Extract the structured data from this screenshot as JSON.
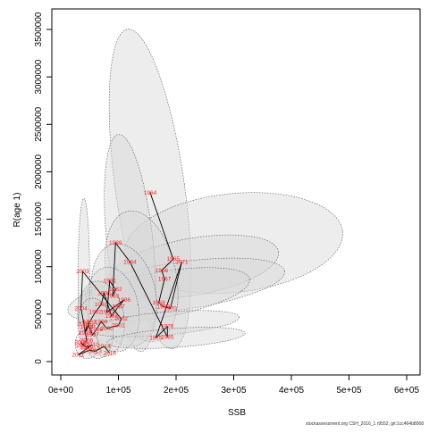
{
  "chart_data": {
    "type": "scatter",
    "title": "",
    "xlabel": "SSB",
    "ylabel": "R(age 1)",
    "xlim": [
      0,
      600000
    ],
    "ylim": [
      0,
      3500000
    ],
    "x_ticks": [
      0,
      100000,
      200000,
      300000,
      400000,
      500000,
      600000
    ],
    "x_tick_labels": [
      "0e+00",
      "1e+05",
      "2e+05",
      "3e+05",
      "4e+05",
      "5e+05",
      "6e+05"
    ],
    "y_ticks": [
      0,
      500000,
      1000000,
      1500000,
      2000000,
      2500000,
      3000000,
      3500000
    ],
    "y_tick_labels": [
      "0",
      "500000",
      "1000000",
      "1500000",
      "2000000",
      "2500000",
      "3000000",
      "3500000"
    ],
    "grid": false,
    "legend": "none",
    "colors": {
      "points": "#ff2020",
      "line": "#000000",
      "ellipse_fill": "#d8d8d8",
      "ellipse_stroke": "#555555"
    },
    "point_labels": [
      {
        "label": "1964",
        "x": 155000,
        "y": 1780000
      },
      {
        "label": "1976",
        "x": 185000,
        "y": 370000
      },
      {
        "label": "1965",
        "x": 195000,
        "y": 1080000
      },
      {
        "label": "1966",
        "x": 175000,
        "y": 960000
      },
      {
        "label": "1967",
        "x": 180000,
        "y": 870000
      },
      {
        "label": "1968",
        "x": 170000,
        "y": 620000
      },
      {
        "label": "1969",
        "x": 178000,
        "y": 580000
      },
      {
        "label": "1970",
        "x": 190000,
        "y": 560000
      },
      {
        "label": "1971",
        "x": 210000,
        "y": 1050000
      },
      {
        "label": "1975",
        "x": 165000,
        "y": 250000
      },
      {
        "label": "1985",
        "x": 185000,
        "y": 260000
      },
      {
        "label": "1980",
        "x": 80000,
        "y": 520000
      },
      {
        "label": "1981",
        "x": 85000,
        "y": 850000
      },
      {
        "label": "1982",
        "x": 95000,
        "y": 760000
      },
      {
        "label": "1983",
        "x": 90000,
        "y": 690000
      },
      {
        "label": "1984",
        "x": 120000,
        "y": 1050000
      },
      {
        "label": "1986",
        "x": 110000,
        "y": 650000
      },
      {
        "label": "1987",
        "x": 100000,
        "y": 580000
      },
      {
        "label": "1988",
        "x": 88000,
        "y": 480000
      },
      {
        "label": "1989",
        "x": 95000,
        "y": 1250000
      },
      {
        "label": "1990",
        "x": 75000,
        "y": 720000
      },
      {
        "label": "1991",
        "x": 70000,
        "y": 600000
      },
      {
        "label": "1992",
        "x": 60000,
        "y": 520000
      },
      {
        "label": "1993",
        "x": 50000,
        "y": 420000
      },
      {
        "label": "1994",
        "x": 45000,
        "y": 360000
      },
      {
        "label": "1995",
        "x": 42000,
        "y": 300000
      },
      {
        "label": "1996",
        "x": 48000,
        "y": 380000
      },
      {
        "label": "1997",
        "x": 55000,
        "y": 280000
      },
      {
        "label": "1998",
        "x": 62000,
        "y": 340000
      },
      {
        "label": "1999",
        "x": 70000,
        "y": 420000
      },
      {
        "label": "2000",
        "x": 80000,
        "y": 350000
      },
      {
        "label": "2001",
        "x": 100000,
        "y": 380000
      },
      {
        "label": "2002",
        "x": 105000,
        "y": 450000
      },
      {
        "label": "2003",
        "x": 38000,
        "y": 950000
      },
      {
        "label": "2004",
        "x": 35000,
        "y": 560000
      },
      {
        "label": "2005",
        "x": 40000,
        "y": 400000
      },
      {
        "label": "2006",
        "x": 45000,
        "y": 220000
      },
      {
        "label": "2007",
        "x": 38000,
        "y": 170000
      },
      {
        "label": "2008",
        "x": 35000,
        "y": 200000
      },
      {
        "label": "2009",
        "x": 45000,
        "y": 150000
      },
      {
        "label": "2010",
        "x": 55000,
        "y": 180000
      },
      {
        "label": "2011",
        "x": 30000,
        "y": 70000
      },
      {
        "label": "2012",
        "x": 50000,
        "y": 120000
      },
      {
        "label": "2013",
        "x": 60000,
        "y": 110000
      },
      {
        "label": "2014",
        "x": 75000,
        "y": 160000
      },
      {
        "label": "2015",
        "x": 85000,
        "y": 90000
      }
    ],
    "trajectory_order": [
      "1964",
      "1965",
      "1966",
      "1967",
      "1968",
      "1969",
      "1970",
      "1971",
      "1975",
      "1976",
      "1985",
      "1984",
      "1989",
      "1983",
      "1982",
      "1981",
      "1980",
      "1986",
      "1987",
      "1988",
      "1990",
      "1991",
      "1992",
      "1993",
      "1994",
      "1995",
      "1996",
      "1997",
      "1998",
      "1999",
      "2000",
      "2001",
      "2002",
      "2003",
      "2004",
      "2005",
      "2006",
      "2007",
      "2008",
      "2009",
      "2010",
      "2011",
      "2012",
      "2013",
      "2014",
      "2015"
    ],
    "ellipses": [
      {
        "cx": 155000,
        "cy": 1820000,
        "rx": 60000,
        "ry": 1700000,
        "rot": -8
      },
      {
        "cx": 300000,
        "cy": 1250000,
        "rx": 190000,
        "ry": 520000,
        "rot": -6
      },
      {
        "cx": 230000,
        "cy": 1000000,
        "rx": 150000,
        "ry": 300000,
        "rot": -10
      },
      {
        "cx": 210000,
        "cy": 800000,
        "rx": 180000,
        "ry": 250000,
        "rot": -8
      },
      {
        "cx": 170000,
        "cy": 700000,
        "rx": 160000,
        "ry": 240000,
        "rot": -10
      },
      {
        "cx": 120000,
        "cy": 1250000,
        "rx": 40000,
        "ry": 1150000,
        "rot": -6
      },
      {
        "cx": 140000,
        "cy": 900000,
        "rx": 60000,
        "ry": 700000,
        "rot": -12
      },
      {
        "cx": 110000,
        "cy": 700000,
        "rx": 55000,
        "ry": 550000,
        "rot": -12
      },
      {
        "cx": 90000,
        "cy": 550000,
        "rx": 45000,
        "ry": 450000,
        "rot": -10
      },
      {
        "cx": 70000,
        "cy": 450000,
        "rx": 40000,
        "ry": 400000,
        "rot": -8
      },
      {
        "cx": 40000,
        "cy": 900000,
        "rx": 10000,
        "ry": 820000,
        "rot": 0
      },
      {
        "cx": 60000,
        "cy": 350000,
        "rx": 30000,
        "ry": 320000,
        "rot": -8
      },
      {
        "cx": 180000,
        "cy": 400000,
        "rx": 130000,
        "ry": 120000,
        "rot": -5
      },
      {
        "cx": 200000,
        "cy": 250000,
        "rx": 120000,
        "ry": 100000,
        "rot": -4
      },
      {
        "cx": 45000,
        "cy": 180000,
        "rx": 20000,
        "ry": 150000,
        "rot": -6
      }
    ]
  },
  "watermark": "stockassessment.org CSH_2016_1 r9552, git:1cc464b8068"
}
